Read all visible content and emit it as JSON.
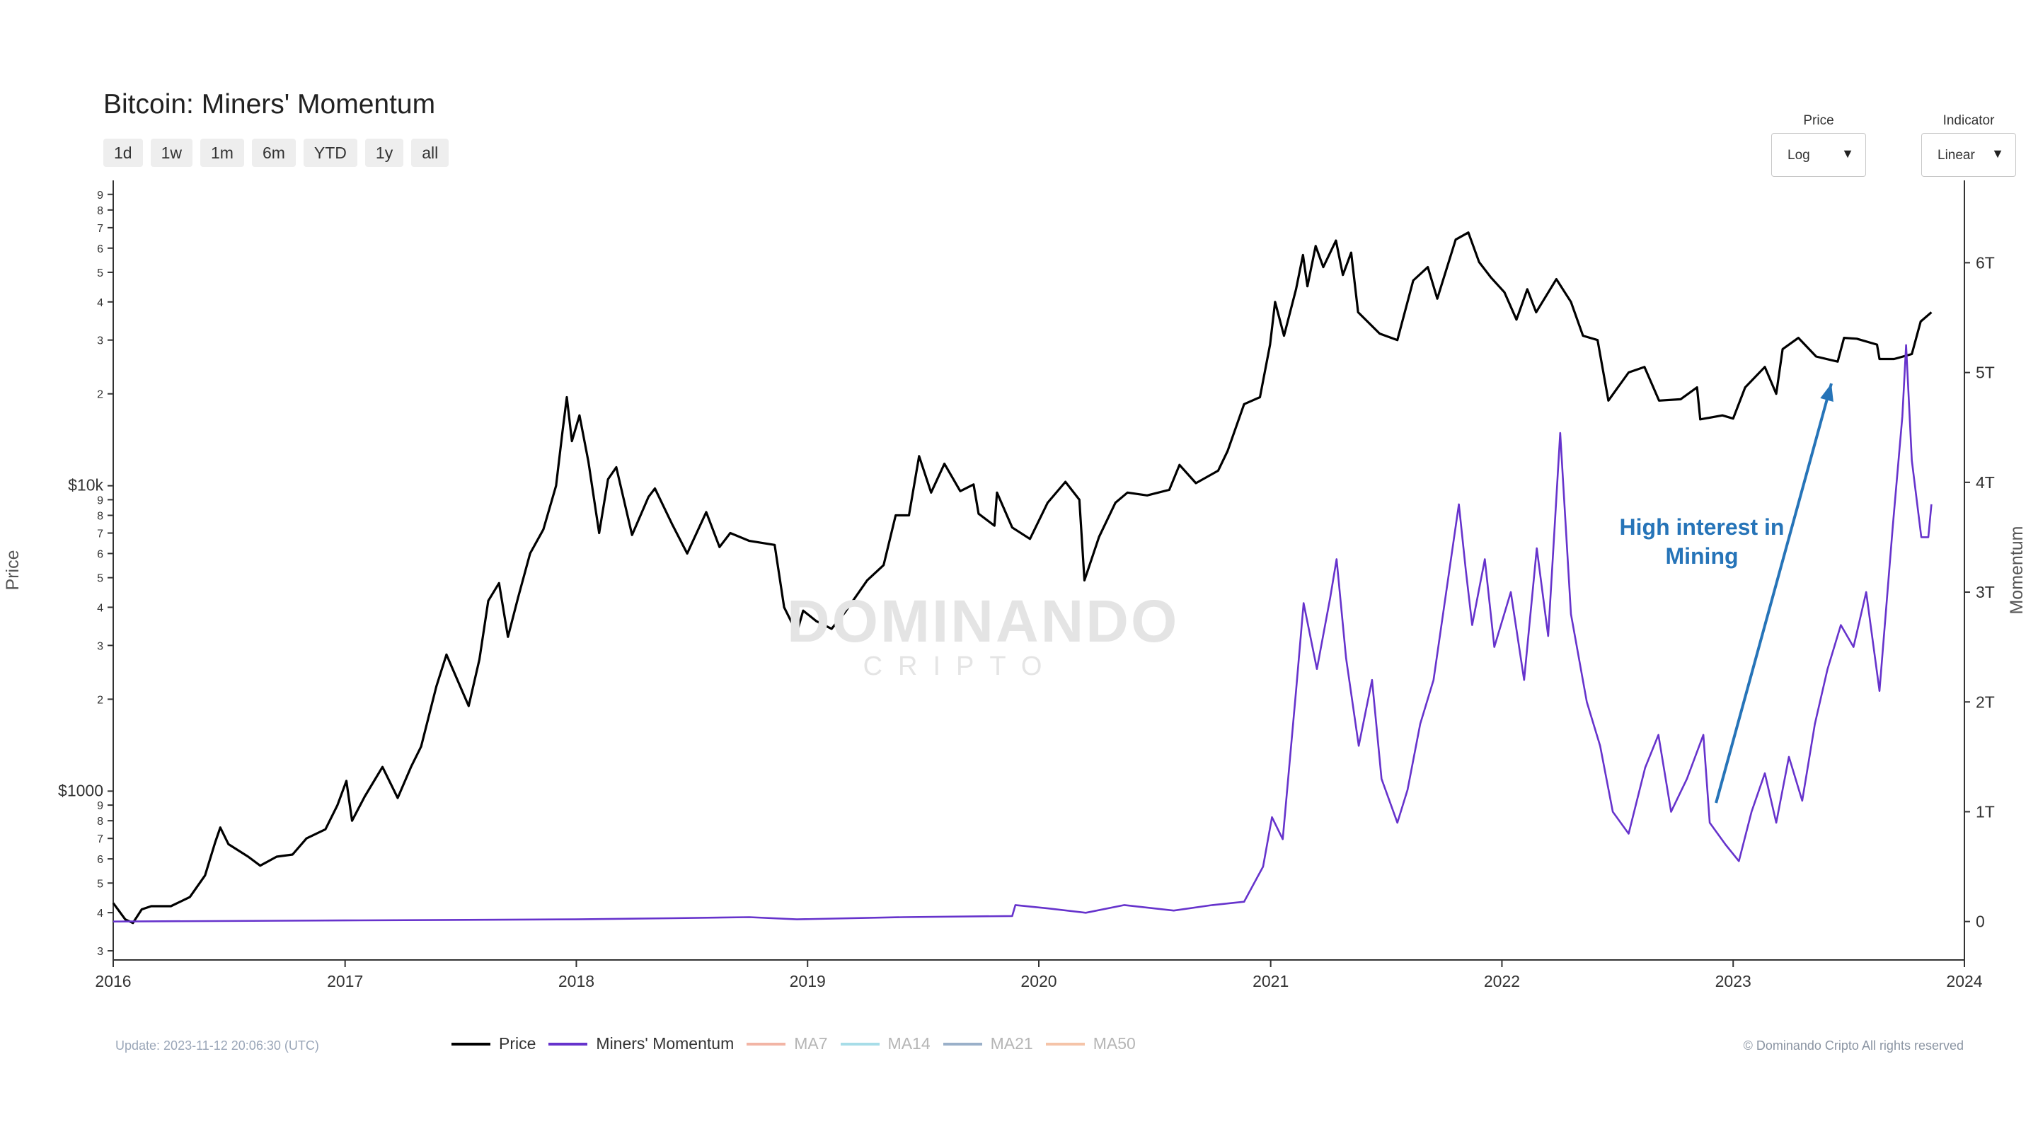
{
  "page": {
    "title": "Bitcoin: Miners' Momentum",
    "range_buttons": [
      "1d",
      "1w",
      "1m",
      "6m",
      "YTD",
      "1y",
      "all"
    ],
    "price_control": {
      "label": "Price",
      "value": "Log"
    },
    "indicator_control": {
      "label": "Indicator",
      "value": "Linear"
    },
    "update_text": "Update: 2023-11-12 20:06:30 (UTC)",
    "copyright": "© Dominando Cripto All rights reserved",
    "watermark": {
      "name": "DOMINANDO",
      "sub": "CRIPTO"
    },
    "annotation": {
      "line1": "High interest in",
      "line2": "Mining"
    }
  },
  "chart_data": {
    "type": "line",
    "title": "Bitcoin: Miners' Momentum",
    "x_axis": {
      "ticks": [
        "2016",
        "2017",
        "2018",
        "2019",
        "2020",
        "2021",
        "2022",
        "2023",
        "2024"
      ],
      "range": [
        "2016-01-01",
        "2024-01-01"
      ]
    },
    "y_left": {
      "label": "Price",
      "scale": "log",
      "range": [
        280,
        100000
      ],
      "ticks": [
        {
          "v": 300,
          "t": "3"
        },
        {
          "v": 400,
          "t": "4"
        },
        {
          "v": 500,
          "t": "5"
        },
        {
          "v": 600,
          "t": "6"
        },
        {
          "v": 700,
          "t": "7"
        },
        {
          "v": 800,
          "t": "8"
        },
        {
          "v": 900,
          "t": "9"
        },
        {
          "v": 1000,
          "t": "$1000"
        },
        {
          "v": 2000,
          "t": "2"
        },
        {
          "v": 3000,
          "t": "3"
        },
        {
          "v": 4000,
          "t": "4"
        },
        {
          "v": 5000,
          "t": "5"
        },
        {
          "v": 6000,
          "t": "6"
        },
        {
          "v": 7000,
          "t": "7"
        },
        {
          "v": 8000,
          "t": "8"
        },
        {
          "v": 9000,
          "t": "9"
        },
        {
          "v": 10000,
          "t": "$10k"
        },
        {
          "v": 20000,
          "t": "2"
        },
        {
          "v": 30000,
          "t": "3"
        },
        {
          "v": 40000,
          "t": "4"
        },
        {
          "v": 50000,
          "t": "5"
        },
        {
          "v": 60000,
          "t": "6"
        },
        {
          "v": 70000,
          "t": "7"
        },
        {
          "v": 80000,
          "t": "8"
        },
        {
          "v": 90000,
          "t": "9"
        }
      ]
    },
    "y_right": {
      "label": "Momentum",
      "scale": "linear",
      "range": [
        -0.35,
        6.75
      ],
      "unit": "T",
      "ticks": [
        {
          "v": 0,
          "t": "0"
        },
        {
          "v": 1,
          "t": "1T"
        },
        {
          "v": 2,
          "t": "2T"
        },
        {
          "v": 3,
          "t": "3T"
        },
        {
          "v": 4,
          "t": "4T"
        },
        {
          "v": 5,
          "t": "5T"
        },
        {
          "v": 6,
          "t": "6T"
        }
      ]
    },
    "series": [
      {
        "name": "Price",
        "axis": "left",
        "color": "#000000",
        "points": [
          [
            "2016-01-01",
            430
          ],
          [
            "2016-01-20",
            380
          ],
          [
            "2016-02-01",
            370
          ],
          [
            "2016-02-15",
            410
          ],
          [
            "2016-03-01",
            420
          ],
          [
            "2016-04-01",
            420
          ],
          [
            "2016-05-01",
            450
          ],
          [
            "2016-05-25",
            530
          ],
          [
            "2016-06-10",
            680
          ],
          [
            "2016-06-18",
            760
          ],
          [
            "2016-07-01",
            670
          ],
          [
            "2016-08-01",
            610
          ],
          [
            "2016-08-20",
            570
          ],
          [
            "2016-09-15",
            610
          ],
          [
            "2016-10-10",
            620
          ],
          [
            "2016-11-01",
            700
          ],
          [
            "2016-12-01",
            750
          ],
          [
            "2016-12-20",
            900
          ],
          [
            "2017-01-03",
            1080
          ],
          [
            "2017-01-12",
            800
          ],
          [
            "2017-02-01",
            960
          ],
          [
            "2017-03-01",
            1200
          ],
          [
            "2017-03-25",
            950
          ],
          [
            "2017-04-15",
            1200
          ],
          [
            "2017-05-01",
            1400
          ],
          [
            "2017-05-25",
            2200
          ],
          [
            "2017-06-10",
            2800
          ],
          [
            "2017-07-15",
            1900
          ],
          [
            "2017-08-01",
            2700
          ],
          [
            "2017-08-15",
            4200
          ],
          [
            "2017-09-01",
            4800
          ],
          [
            "2017-09-15",
            3200
          ],
          [
            "2017-10-01",
            4300
          ],
          [
            "2017-10-20",
            6000
          ],
          [
            "2017-11-10",
            7200
          ],
          [
            "2017-11-30",
            10000
          ],
          [
            "2017-12-10",
            15000
          ],
          [
            "2017-12-17",
            19500
          ],
          [
            "2017-12-25",
            14000
          ],
          [
            "2018-01-06",
            17000
          ],
          [
            "2018-01-20",
            12000
          ],
          [
            "2018-02-06",
            7000
          ],
          [
            "2018-02-20",
            10500
          ],
          [
            "2018-03-05",
            11500
          ],
          [
            "2018-03-30",
            6900
          ],
          [
            "2018-04-25",
            9200
          ],
          [
            "2018-05-05",
            9800
          ],
          [
            "2018-06-01",
            7500
          ],
          [
            "2018-06-25",
            6000
          ],
          [
            "2018-07-25",
            8200
          ],
          [
            "2018-08-15",
            6300
          ],
          [
            "2018-09-01",
            7000
          ],
          [
            "2018-10-01",
            6600
          ],
          [
            "2018-11-10",
            6400
          ],
          [
            "2018-11-25",
            4000
          ],
          [
            "2018-12-15",
            3300
          ],
          [
            "2018-12-25",
            3900
          ],
          [
            "2019-01-15",
            3600
          ],
          [
            "2019-02-08",
            3400
          ],
          [
            "2019-03-01",
            3850
          ],
          [
            "2019-04-05",
            4900
          ],
          [
            "2019-05-01",
            5500
          ],
          [
            "2019-05-20",
            8000
          ],
          [
            "2019-06-10",
            8000
          ],
          [
            "2019-06-26",
            12500
          ],
          [
            "2019-07-15",
            9500
          ],
          [
            "2019-08-05",
            11800
          ],
          [
            "2019-08-30",
            9600
          ],
          [
            "2019-09-20",
            10100
          ],
          [
            "2019-09-28",
            8100
          ],
          [
            "2019-10-23",
            7400
          ],
          [
            "2019-10-27",
            9500
          ],
          [
            "2019-11-20",
            7300
          ],
          [
            "2019-12-18",
            6700
          ],
          [
            "2020-01-15",
            8800
          ],
          [
            "2020-02-12",
            10300
          ],
          [
            "2020-03-05",
            9000
          ],
          [
            "2020-03-13",
            4900
          ],
          [
            "2020-04-05",
            6800
          ],
          [
            "2020-05-01",
            8800
          ],
          [
            "2020-05-20",
            9500
          ],
          [
            "2020-06-20",
            9300
          ],
          [
            "2020-07-25",
            9700
          ],
          [
            "2020-08-10",
            11700
          ],
          [
            "2020-09-05",
            10200
          ],
          [
            "2020-10-10",
            11200
          ],
          [
            "2020-10-25",
            13000
          ],
          [
            "2020-11-20",
            18500
          ],
          [
            "2020-12-15",
            19500
          ],
          [
            "2020-12-31",
            29000
          ],
          [
            "2021-01-08",
            40000
          ],
          [
            "2021-01-22",
            31000
          ],
          [
            "2021-02-10",
            44000
          ],
          [
            "2021-02-21",
            57000
          ],
          [
            "2021-02-28",
            45000
          ],
          [
            "2021-03-13",
            61000
          ],
          [
            "2021-03-25",
            52000
          ],
          [
            "2021-04-14",
            63500
          ],
          [
            "2021-04-25",
            49000
          ],
          [
            "2021-05-08",
            58000
          ],
          [
            "2021-05-19",
            37000
          ],
          [
            "2021-06-22",
            31500
          ],
          [
            "2021-07-20",
            30000
          ],
          [
            "2021-08-14",
            47000
          ],
          [
            "2021-09-06",
            52000
          ],
          [
            "2021-09-21",
            41000
          ],
          [
            "2021-10-20",
            64000
          ],
          [
            "2021-11-09",
            67500
          ],
          [
            "2021-11-26",
            54000
          ],
          [
            "2021-12-15",
            48000
          ],
          [
            "2022-01-05",
            43000
          ],
          [
            "2022-01-24",
            35000
          ],
          [
            "2022-02-10",
            44000
          ],
          [
            "2022-02-24",
            37000
          ],
          [
            "2022-03-28",
            47500
          ],
          [
            "2022-04-20",
            40000
          ],
          [
            "2022-05-09",
            31000
          ],
          [
            "2022-06-01",
            30000
          ],
          [
            "2022-06-18",
            19000
          ],
          [
            "2022-07-20",
            23500
          ],
          [
            "2022-08-14",
            24500
          ],
          [
            "2022-09-06",
            19000
          ],
          [
            "2022-10-10",
            19200
          ],
          [
            "2022-11-05",
            21000
          ],
          [
            "2022-11-10",
            16500
          ],
          [
            "2022-12-15",
            17000
          ],
          [
            "2023-01-01",
            16600
          ],
          [
            "2023-01-20",
            21000
          ],
          [
            "2023-02-20",
            24500
          ],
          [
            "2023-03-10",
            20000
          ],
          [
            "2023-03-20",
            28000
          ],
          [
            "2023-04-14",
            30500
          ],
          [
            "2023-05-12",
            26500
          ],
          [
            "2023-06-15",
            25500
          ],
          [
            "2023-06-25",
            30500
          ],
          [
            "2023-07-15",
            30300
          ],
          [
            "2023-08-16",
            29000
          ],
          [
            "2023-08-20",
            26000
          ],
          [
            "2023-09-12",
            26000
          ],
          [
            "2023-10-10",
            27000
          ],
          [
            "2023-10-24",
            34500
          ],
          [
            "2023-11-10",
            37000
          ]
        ]
      },
      {
        "name": "Miners' Momentum",
        "axis": "right",
        "color": "#6633cc",
        "points": [
          [
            "2016-01-01",
            0.0
          ],
          [
            "2017-01-01",
            0.01
          ],
          [
            "2018-01-01",
            0.02
          ],
          [
            "2018-06-01",
            0.03
          ],
          [
            "2018-10-01",
            0.04
          ],
          [
            "2018-12-15",
            0.02
          ],
          [
            "2019-06-01",
            0.04
          ],
          [
            "2019-11-20",
            0.05
          ],
          [
            "2019-11-25",
            0.15
          ],
          [
            "2020-01-15",
            0.12
          ],
          [
            "2020-03-15",
            0.08
          ],
          [
            "2020-05-15",
            0.15
          ],
          [
            "2020-08-01",
            0.1
          ],
          [
            "2020-10-01",
            0.15
          ],
          [
            "2020-11-20",
            0.18
          ],
          [
            "2020-12-20",
            0.5
          ],
          [
            "2021-01-03",
            0.95
          ],
          [
            "2021-01-20",
            0.75
          ],
          [
            "2021-02-10",
            2.1
          ],
          [
            "2021-02-22",
            2.9
          ],
          [
            "2021-03-15",
            2.3
          ],
          [
            "2021-04-05",
            2.95
          ],
          [
            "2021-04-15",
            3.3
          ],
          [
            "2021-04-30",
            2.4
          ],
          [
            "2021-05-20",
            1.6
          ],
          [
            "2021-06-10",
            2.2
          ],
          [
            "2021-06-25",
            1.3
          ],
          [
            "2021-07-20",
            0.9
          ],
          [
            "2021-08-05",
            1.2
          ],
          [
            "2021-08-25",
            1.8
          ],
          [
            "2021-09-15",
            2.2
          ],
          [
            "2021-10-05",
            3.0
          ],
          [
            "2021-10-25",
            3.8
          ],
          [
            "2021-11-05",
            3.2
          ],
          [
            "2021-11-15",
            2.7
          ],
          [
            "2021-12-05",
            3.3
          ],
          [
            "2021-12-20",
            2.5
          ],
          [
            "2022-01-15",
            3.0
          ],
          [
            "2022-02-05",
            2.2
          ],
          [
            "2022-02-25",
            3.4
          ],
          [
            "2022-03-15",
            2.6
          ],
          [
            "2022-04-03",
            4.45
          ],
          [
            "2022-04-20",
            2.8
          ],
          [
            "2022-05-15",
            2.0
          ],
          [
            "2022-06-05",
            1.6
          ],
          [
            "2022-06-25",
            1.0
          ],
          [
            "2022-07-20",
            0.8
          ],
          [
            "2022-08-15",
            1.4
          ],
          [
            "2022-09-05",
            1.7
          ],
          [
            "2022-09-25",
            1.0
          ],
          [
            "2022-10-20",
            1.3
          ],
          [
            "2022-11-15",
            1.7
          ],
          [
            "2022-11-25",
            0.9
          ],
          [
            "2022-12-20",
            0.7
          ],
          [
            "2023-01-10",
            0.55
          ],
          [
            "2023-01-30",
            1.0
          ],
          [
            "2023-02-20",
            1.35
          ],
          [
            "2023-03-10",
            0.9
          ],
          [
            "2023-03-30",
            1.5
          ],
          [
            "2023-04-20",
            1.1
          ],
          [
            "2023-05-10",
            1.8
          ],
          [
            "2023-05-30",
            2.3
          ],
          [
            "2023-06-20",
            2.7
          ],
          [
            "2023-07-10",
            2.5
          ],
          [
            "2023-07-30",
            3.0
          ],
          [
            "2023-08-20",
            2.1
          ],
          [
            "2023-09-10",
            3.6
          ],
          [
            "2023-09-25",
            4.6
          ],
          [
            "2023-10-01",
            5.25
          ],
          [
            "2023-10-10",
            4.2
          ],
          [
            "2023-10-25",
            3.5
          ],
          [
            "2023-11-05",
            3.5
          ],
          [
            "2023-11-10",
            3.8
          ]
        ]
      },
      {
        "name": "MA7",
        "axis": "right",
        "color": "#f2b5a5",
        "points": []
      },
      {
        "name": "MA14",
        "axis": "right",
        "color": "#a7dde8",
        "points": []
      },
      {
        "name": "MA21",
        "axis": "right",
        "color": "#9ab0c9",
        "points": []
      },
      {
        "name": "MA50",
        "axis": "right",
        "color": "#f5c4a8",
        "points": []
      }
    ],
    "annotation": {
      "text": "High interest in Mining",
      "arrow_from": [
        "2022-12-05",
        1.08
      ],
      "arrow_to": [
        "2023-06-05",
        4.9
      ],
      "color": "#2674b8"
    }
  }
}
